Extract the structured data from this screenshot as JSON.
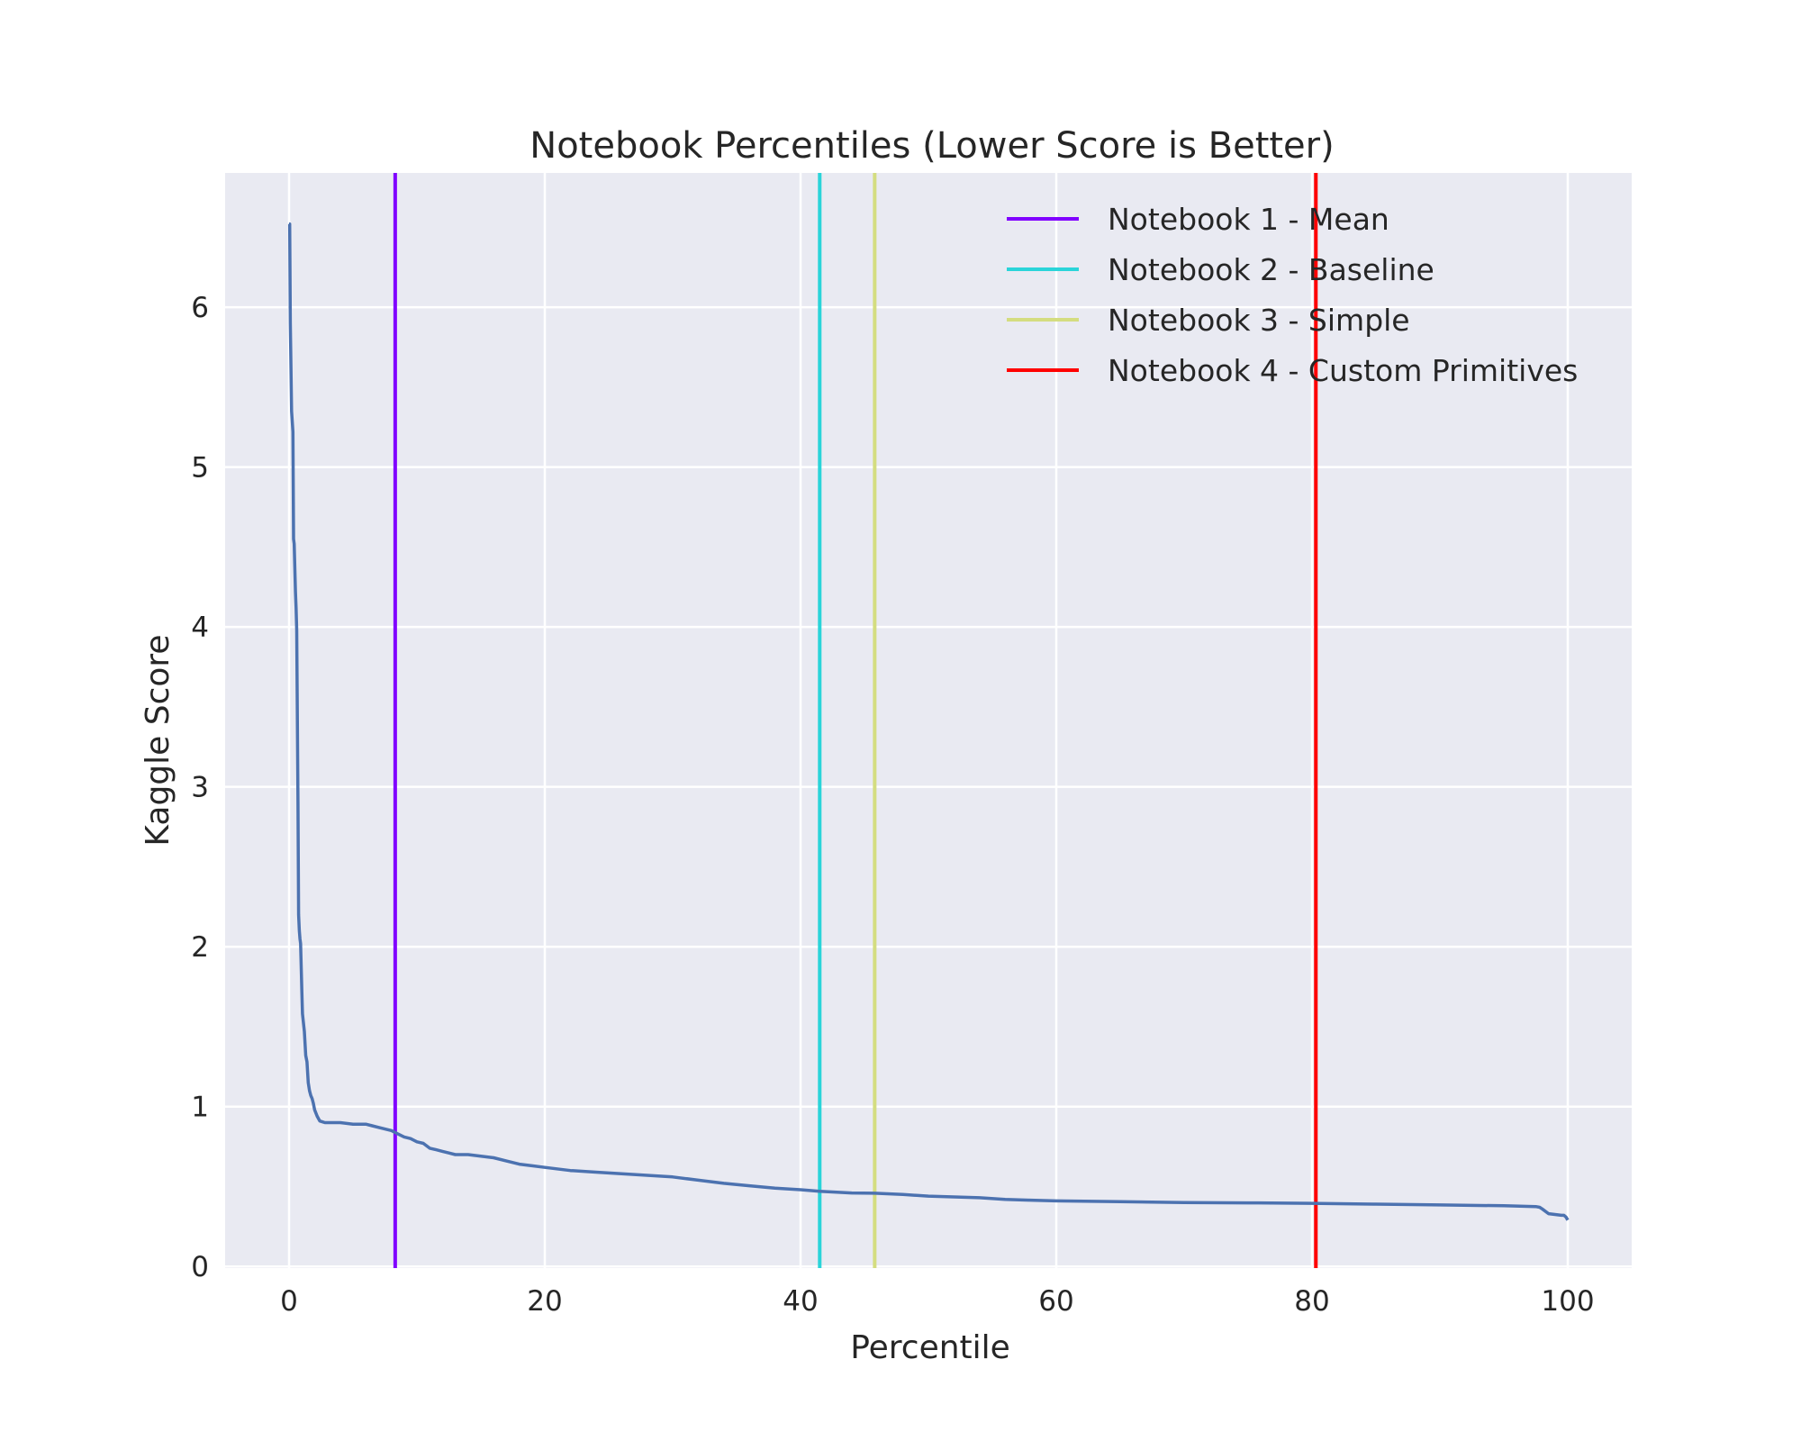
{
  "chart_data": {
    "type": "line",
    "title": "Notebook Percentiles (Lower Score is Better)",
    "xlabel": "Percentile",
    "ylabel": "Kaggle Score",
    "xlim": [
      -5,
      105
    ],
    "ylim": [
      -0.01,
      6.84
    ],
    "xticks": [
      0,
      20,
      40,
      60,
      80,
      100
    ],
    "yticks": [
      0,
      1,
      2,
      3,
      4,
      5,
      6
    ],
    "grid": true,
    "legend_position": "top-right",
    "colors": {
      "plot_bg": "#e9eaf2",
      "grid": "#ffffff"
    },
    "series": [
      {
        "color": "#4c72b0",
        "x": [
          0.0,
          0.05,
          0.1,
          0.2,
          0.3,
          0.35,
          0.4,
          0.5,
          0.55,
          0.6,
          0.7,
          0.75,
          0.8,
          0.85,
          0.9,
          1.0,
          1.05,
          1.2,
          1.3,
          1.4,
          1.5,
          1.6,
          1.7,
          1.8,
          1.9,
          2.0,
          2.2,
          2.4,
          2.6,
          2.8,
          3.0,
          3.3,
          3.6,
          4.0,
          5.0,
          5.5,
          6.0,
          6.5,
          7.0,
          7.5,
          8.0,
          8.5,
          9.0,
          9.5,
          10.0,
          10.5,
          11.0,
          11.5,
          12.0,
          12.5,
          13.0,
          13.5,
          14.0,
          15.0,
          16.0,
          17.0,
          18.0,
          19.0,
          20.0,
          22.0,
          24.0,
          26.0,
          28.0,
          30.0,
          32.0,
          34.0,
          36.0,
          38.0,
          40.0,
          41.5,
          42.0,
          44.0,
          45.8,
          48.0,
          50.0,
          52.0,
          54.0,
          56.0,
          58.0,
          60.0,
          65.0,
          70.0,
          75.0,
          80.0,
          85.0,
          90.0,
          95.0,
          97.5,
          97.8,
          98.0,
          98.5,
          99.0,
          99.5,
          99.7,
          99.85,
          100.0
        ],
        "y": [
          6.52,
          6.52,
          5.9,
          5.35,
          5.22,
          4.55,
          4.52,
          4.22,
          4.12,
          3.98,
          2.9,
          2.2,
          2.1,
          2.05,
          2.02,
          1.72,
          1.58,
          1.47,
          1.32,
          1.28,
          1.15,
          1.1,
          1.07,
          1.05,
          1.02,
          0.98,
          0.94,
          0.91,
          0.905,
          0.9,
          0.9,
          0.9,
          0.9,
          0.9,
          0.89,
          0.89,
          0.89,
          0.88,
          0.87,
          0.86,
          0.85,
          0.83,
          0.81,
          0.8,
          0.78,
          0.77,
          0.74,
          0.73,
          0.72,
          0.71,
          0.7,
          0.7,
          0.7,
          0.69,
          0.68,
          0.66,
          0.64,
          0.63,
          0.62,
          0.6,
          0.59,
          0.58,
          0.57,
          0.56,
          0.54,
          0.52,
          0.505,
          0.49,
          0.48,
          0.47,
          0.468,
          0.46,
          0.458,
          0.45,
          0.44,
          0.435,
          0.43,
          0.42,
          0.415,
          0.41,
          0.405,
          0.4,
          0.398,
          0.395,
          0.39,
          0.385,
          0.38,
          0.375,
          0.37,
          0.36,
          0.33,
          0.325,
          0.32,
          0.32,
          0.31,
          0.29
        ]
      }
    ],
    "vlines": [
      {
        "name": "Notebook 1 - Mean",
        "x": 8.3,
        "color": "#8000ff"
      },
      {
        "name": "Notebook 2 - Baseline",
        "x": 41.5,
        "color": "#2ad4d9"
      },
      {
        "name": "Notebook 3 - Simple",
        "x": 45.8,
        "color": "#d4dd80"
      },
      {
        "name": "Notebook 4 - Custom Primitives",
        "x": 80.3,
        "color": "#ff0000"
      }
    ]
  }
}
